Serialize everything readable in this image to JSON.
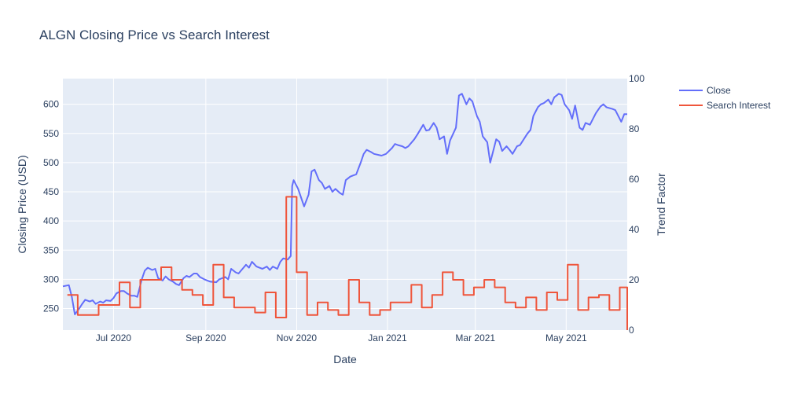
{
  "chart_data": {
    "type": "line",
    "title": "ALGN Closing Price vs Search Interest",
    "xlabel": "Date",
    "ylabel": "Closing Price (USD)",
    "y2label": "Trend Factor",
    "x_range": [
      "2020-05-28",
      "2021-06-11"
    ],
    "ylim": [
      213,
      644
    ],
    "y2lim": [
      0,
      100
    ],
    "x_ticks": [
      {
        "date": "2020-07-01",
        "label": "Jul 2020"
      },
      {
        "date": "2020-09-01",
        "label": "Sep 2020"
      },
      {
        "date": "2020-11-01",
        "label": "Nov 2020"
      },
      {
        "date": "2021-01-01",
        "label": "Jan 2021"
      },
      {
        "date": "2021-03-01",
        "label": "Mar 2021"
      },
      {
        "date": "2021-05-01",
        "label": "May 2021"
      }
    ],
    "y_ticks": [
      250,
      300,
      350,
      400,
      450,
      500,
      550,
      600
    ],
    "y2_ticks": [
      0,
      20,
      40,
      60,
      80,
      100
    ],
    "legend_position": "top-right",
    "grid": true,
    "series": [
      {
        "name": "Close",
        "axis": "y",
        "color": "#636efa",
        "points": [
          [
            "2020-05-28",
            288
          ],
          [
            "2020-06-01",
            290
          ],
          [
            "2020-06-03",
            270
          ],
          [
            "2020-06-05",
            240
          ],
          [
            "2020-06-08",
            250
          ],
          [
            "2020-06-10",
            258
          ],
          [
            "2020-06-12",
            265
          ],
          [
            "2020-06-15",
            262
          ],
          [
            "2020-06-17",
            264
          ],
          [
            "2020-06-19",
            258
          ],
          [
            "2020-06-22",
            262
          ],
          [
            "2020-06-24",
            260
          ],
          [
            "2020-06-26",
            264
          ],
          [
            "2020-06-29",
            263
          ],
          [
            "2020-07-01",
            268
          ],
          [
            "2020-07-03",
            276
          ],
          [
            "2020-07-06",
            280
          ],
          [
            "2020-07-08",
            280
          ],
          [
            "2020-07-10",
            276
          ],
          [
            "2020-07-13",
            272
          ],
          [
            "2020-07-15",
            272
          ],
          [
            "2020-07-17",
            270
          ],
          [
            "2020-07-20",
            300
          ],
          [
            "2020-07-22",
            315
          ],
          [
            "2020-07-24",
            320
          ],
          [
            "2020-07-27",
            316
          ],
          [
            "2020-07-29",
            318
          ],
          [
            "2020-07-31",
            302
          ],
          [
            "2020-08-03",
            298
          ],
          [
            "2020-08-05",
            305
          ],
          [
            "2020-08-07",
            300
          ],
          [
            "2020-08-10",
            296
          ],
          [
            "2020-08-12",
            292
          ],
          [
            "2020-08-14",
            290
          ],
          [
            "2020-08-17",
            302
          ],
          [
            "2020-08-19",
            306
          ],
          [
            "2020-08-21",
            304
          ],
          [
            "2020-08-24",
            310
          ],
          [
            "2020-08-26",
            310
          ],
          [
            "2020-08-28",
            304
          ],
          [
            "2020-08-31",
            300
          ],
          [
            "2020-09-02",
            298
          ],
          [
            "2020-09-04",
            296
          ],
          [
            "2020-09-08",
            295
          ],
          [
            "2020-09-10",
            300
          ],
          [
            "2020-09-14",
            304
          ],
          [
            "2020-09-16",
            300
          ],
          [
            "2020-09-18",
            318
          ],
          [
            "2020-09-21",
            312
          ],
          [
            "2020-09-23",
            310
          ],
          [
            "2020-09-25",
            316
          ],
          [
            "2020-09-28",
            325
          ],
          [
            "2020-09-30",
            320
          ],
          [
            "2020-10-02",
            330
          ],
          [
            "2020-10-05",
            322
          ],
          [
            "2020-10-07",
            320
          ],
          [
            "2020-10-09",
            318
          ],
          [
            "2020-10-12",
            322
          ],
          [
            "2020-10-14",
            316
          ],
          [
            "2020-10-16",
            322
          ],
          [
            "2020-10-19",
            318
          ],
          [
            "2020-10-21",
            330
          ],
          [
            "2020-10-23",
            336
          ],
          [
            "2020-10-26",
            334
          ],
          [
            "2020-10-28",
            340
          ],
          [
            "2020-10-29",
            460
          ],
          [
            "2020-10-30",
            470
          ],
          [
            "2020-11-02",
            455
          ],
          [
            "2020-11-04",
            440
          ],
          [
            "2020-11-06",
            425
          ],
          [
            "2020-11-09",
            445
          ],
          [
            "2020-11-11",
            485
          ],
          [
            "2020-11-13",
            488
          ],
          [
            "2020-11-16",
            470
          ],
          [
            "2020-11-18",
            465
          ],
          [
            "2020-11-20",
            455
          ],
          [
            "2020-11-23",
            460
          ],
          [
            "2020-11-25",
            450
          ],
          [
            "2020-11-27",
            455
          ],
          [
            "2020-11-30",
            448
          ],
          [
            "2020-12-02",
            445
          ],
          [
            "2020-12-04",
            470
          ],
          [
            "2020-12-07",
            476
          ],
          [
            "2020-12-09",
            478
          ],
          [
            "2020-12-11",
            480
          ],
          [
            "2020-12-14",
            500
          ],
          [
            "2020-12-16",
            515
          ],
          [
            "2020-12-18",
            522
          ],
          [
            "2020-12-21",
            518
          ],
          [
            "2020-12-23",
            515
          ],
          [
            "2020-12-28",
            512
          ],
          [
            "2020-12-31",
            515
          ],
          [
            "2021-01-04",
            525
          ],
          [
            "2021-01-06",
            532
          ],
          [
            "2021-01-08",
            530
          ],
          [
            "2021-01-11",
            528
          ],
          [
            "2021-01-13",
            525
          ],
          [
            "2021-01-15",
            528
          ],
          [
            "2021-01-19",
            540
          ],
          [
            "2021-01-21",
            548
          ],
          [
            "2021-01-25",
            565
          ],
          [
            "2021-01-27",
            555
          ],
          [
            "2021-01-29",
            556
          ],
          [
            "2021-02-01",
            568
          ],
          [
            "2021-02-03",
            560
          ],
          [
            "2021-02-05",
            540
          ],
          [
            "2021-02-08",
            545
          ],
          [
            "2021-02-10",
            515
          ],
          [
            "2021-02-12",
            538
          ],
          [
            "2021-02-16",
            560
          ],
          [
            "2021-02-18",
            615
          ],
          [
            "2021-02-20",
            618
          ],
          [
            "2021-02-23",
            600
          ],
          [
            "2021-02-25",
            610
          ],
          [
            "2021-02-27",
            605
          ],
          [
            "2021-03-02",
            580
          ],
          [
            "2021-03-04",
            570
          ],
          [
            "2021-03-06",
            545
          ],
          [
            "2021-03-09",
            535
          ],
          [
            "2021-03-11",
            500
          ],
          [
            "2021-03-15",
            540
          ],
          [
            "2021-03-17",
            536
          ],
          [
            "2021-03-19",
            520
          ],
          [
            "2021-03-22",
            528
          ],
          [
            "2021-03-24",
            522
          ],
          [
            "2021-03-26",
            515
          ],
          [
            "2021-03-29",
            528
          ],
          [
            "2021-03-31",
            530
          ],
          [
            "2021-04-05",
            550
          ],
          [
            "2021-04-07",
            556
          ],
          [
            "2021-04-09",
            580
          ],
          [
            "2021-04-12",
            595
          ],
          [
            "2021-04-14",
            600
          ],
          [
            "2021-04-16",
            602
          ],
          [
            "2021-04-19",
            608
          ],
          [
            "2021-04-21",
            600
          ],
          [
            "2021-04-23",
            612
          ],
          [
            "2021-04-26",
            618
          ],
          [
            "2021-04-28",
            616
          ],
          [
            "2021-04-30",
            600
          ],
          [
            "2021-05-03",
            590
          ],
          [
            "2021-05-05",
            575
          ],
          [
            "2021-05-07",
            598
          ],
          [
            "2021-05-10",
            560
          ],
          [
            "2021-05-12",
            556
          ],
          [
            "2021-05-14",
            568
          ],
          [
            "2021-05-17",
            565
          ],
          [
            "2021-05-19",
            575
          ],
          [
            "2021-05-21",
            585
          ],
          [
            "2021-05-24",
            596
          ],
          [
            "2021-05-26",
            600
          ],
          [
            "2021-05-28",
            595
          ],
          [
            "2021-06-01",
            592
          ],
          [
            "2021-06-03",
            590
          ],
          [
            "2021-06-07",
            570
          ],
          [
            "2021-06-09",
            583
          ],
          [
            "2021-06-11",
            583
          ]
        ]
      },
      {
        "name": "Search Interest",
        "axis": "y2",
        "color": "#ef553b",
        "shape": "hv",
        "points": [
          [
            "2020-05-31",
            14
          ],
          [
            "2020-06-07",
            6
          ],
          [
            "2020-06-21",
            10
          ],
          [
            "2020-07-05",
            19
          ],
          [
            "2020-07-12",
            9
          ],
          [
            "2020-07-19",
            20
          ],
          [
            "2020-08-02",
            25
          ],
          [
            "2020-08-09",
            20
          ],
          [
            "2020-08-16",
            16
          ],
          [
            "2020-08-23",
            14
          ],
          [
            "2020-08-30",
            10
          ],
          [
            "2020-09-06",
            26
          ],
          [
            "2020-09-13",
            13
          ],
          [
            "2020-09-20",
            9
          ],
          [
            "2020-10-04",
            7
          ],
          [
            "2020-10-11",
            15
          ],
          [
            "2020-10-18",
            5
          ],
          [
            "2020-10-25",
            53
          ],
          [
            "2020-11-01",
            23
          ],
          [
            "2020-11-08",
            6
          ],
          [
            "2020-11-15",
            11
          ],
          [
            "2020-11-22",
            8
          ],
          [
            "2020-11-29",
            6
          ],
          [
            "2020-12-06",
            20
          ],
          [
            "2020-12-13",
            11
          ],
          [
            "2020-12-20",
            6
          ],
          [
            "2020-12-27",
            8
          ],
          [
            "2021-01-03",
            11
          ],
          [
            "2021-01-17",
            18
          ],
          [
            "2021-01-24",
            9
          ],
          [
            "2021-01-31",
            14
          ],
          [
            "2021-02-07",
            23
          ],
          [
            "2021-02-14",
            20
          ],
          [
            "2021-02-21",
            14
          ],
          [
            "2021-02-28",
            17
          ],
          [
            "2021-03-07",
            20
          ],
          [
            "2021-03-14",
            17
          ],
          [
            "2021-03-21",
            11
          ],
          [
            "2021-03-28",
            9
          ],
          [
            "2021-04-04",
            13
          ],
          [
            "2021-04-11",
            8
          ],
          [
            "2021-04-18",
            15
          ],
          [
            "2021-04-25",
            12
          ],
          [
            "2021-05-02",
            26
          ],
          [
            "2021-05-09",
            8
          ],
          [
            "2021-05-16",
            13
          ],
          [
            "2021-05-23",
            14
          ],
          [
            "2021-05-30",
            8
          ],
          [
            "2021-06-06",
            17
          ],
          [
            "2021-06-11",
            0
          ]
        ]
      }
    ]
  }
}
